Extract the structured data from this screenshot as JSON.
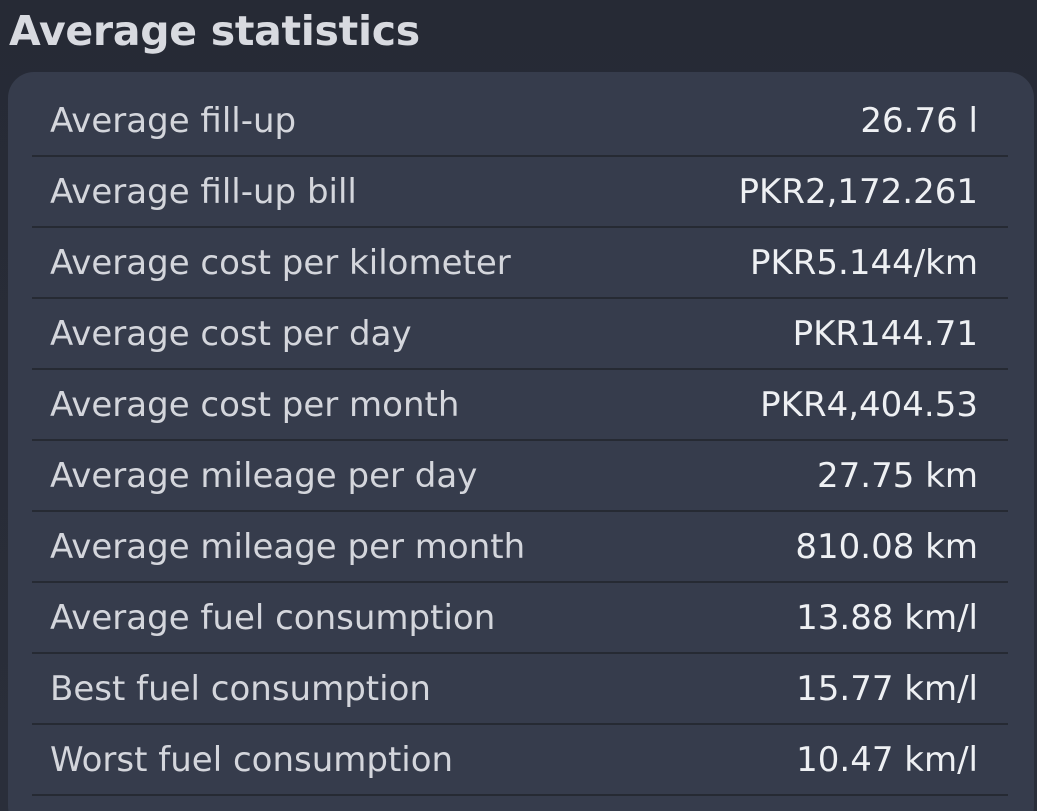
{
  "section": {
    "title": "Average statistics"
  },
  "stats": [
    {
      "label": "Average fill-up",
      "value": "26.76 l"
    },
    {
      "label": "Average fill-up bill",
      "value": "PKR2,172.261"
    },
    {
      "label": "Average cost per kilometer",
      "value": "PKR5.144/km"
    },
    {
      "label": "Average cost per day",
      "value": "PKR144.71"
    },
    {
      "label": "Average cost per month",
      "value": "PKR4,404.53"
    },
    {
      "label": "Average mileage per day",
      "value": "27.75 km"
    },
    {
      "label": "Average mileage per month",
      "value": "810.08 km"
    },
    {
      "label": "Average fuel consumption",
      "value": "13.88 km/l"
    },
    {
      "label": "Best fuel consumption",
      "value": "15.77 km/l"
    },
    {
      "label": "Worst fuel consumption",
      "value": "10.47 km/l"
    }
  ],
  "colors": {
    "background": "#282c37",
    "card": "#363c4c",
    "divider": "#262a33",
    "text": "#d4d6dc"
  }
}
